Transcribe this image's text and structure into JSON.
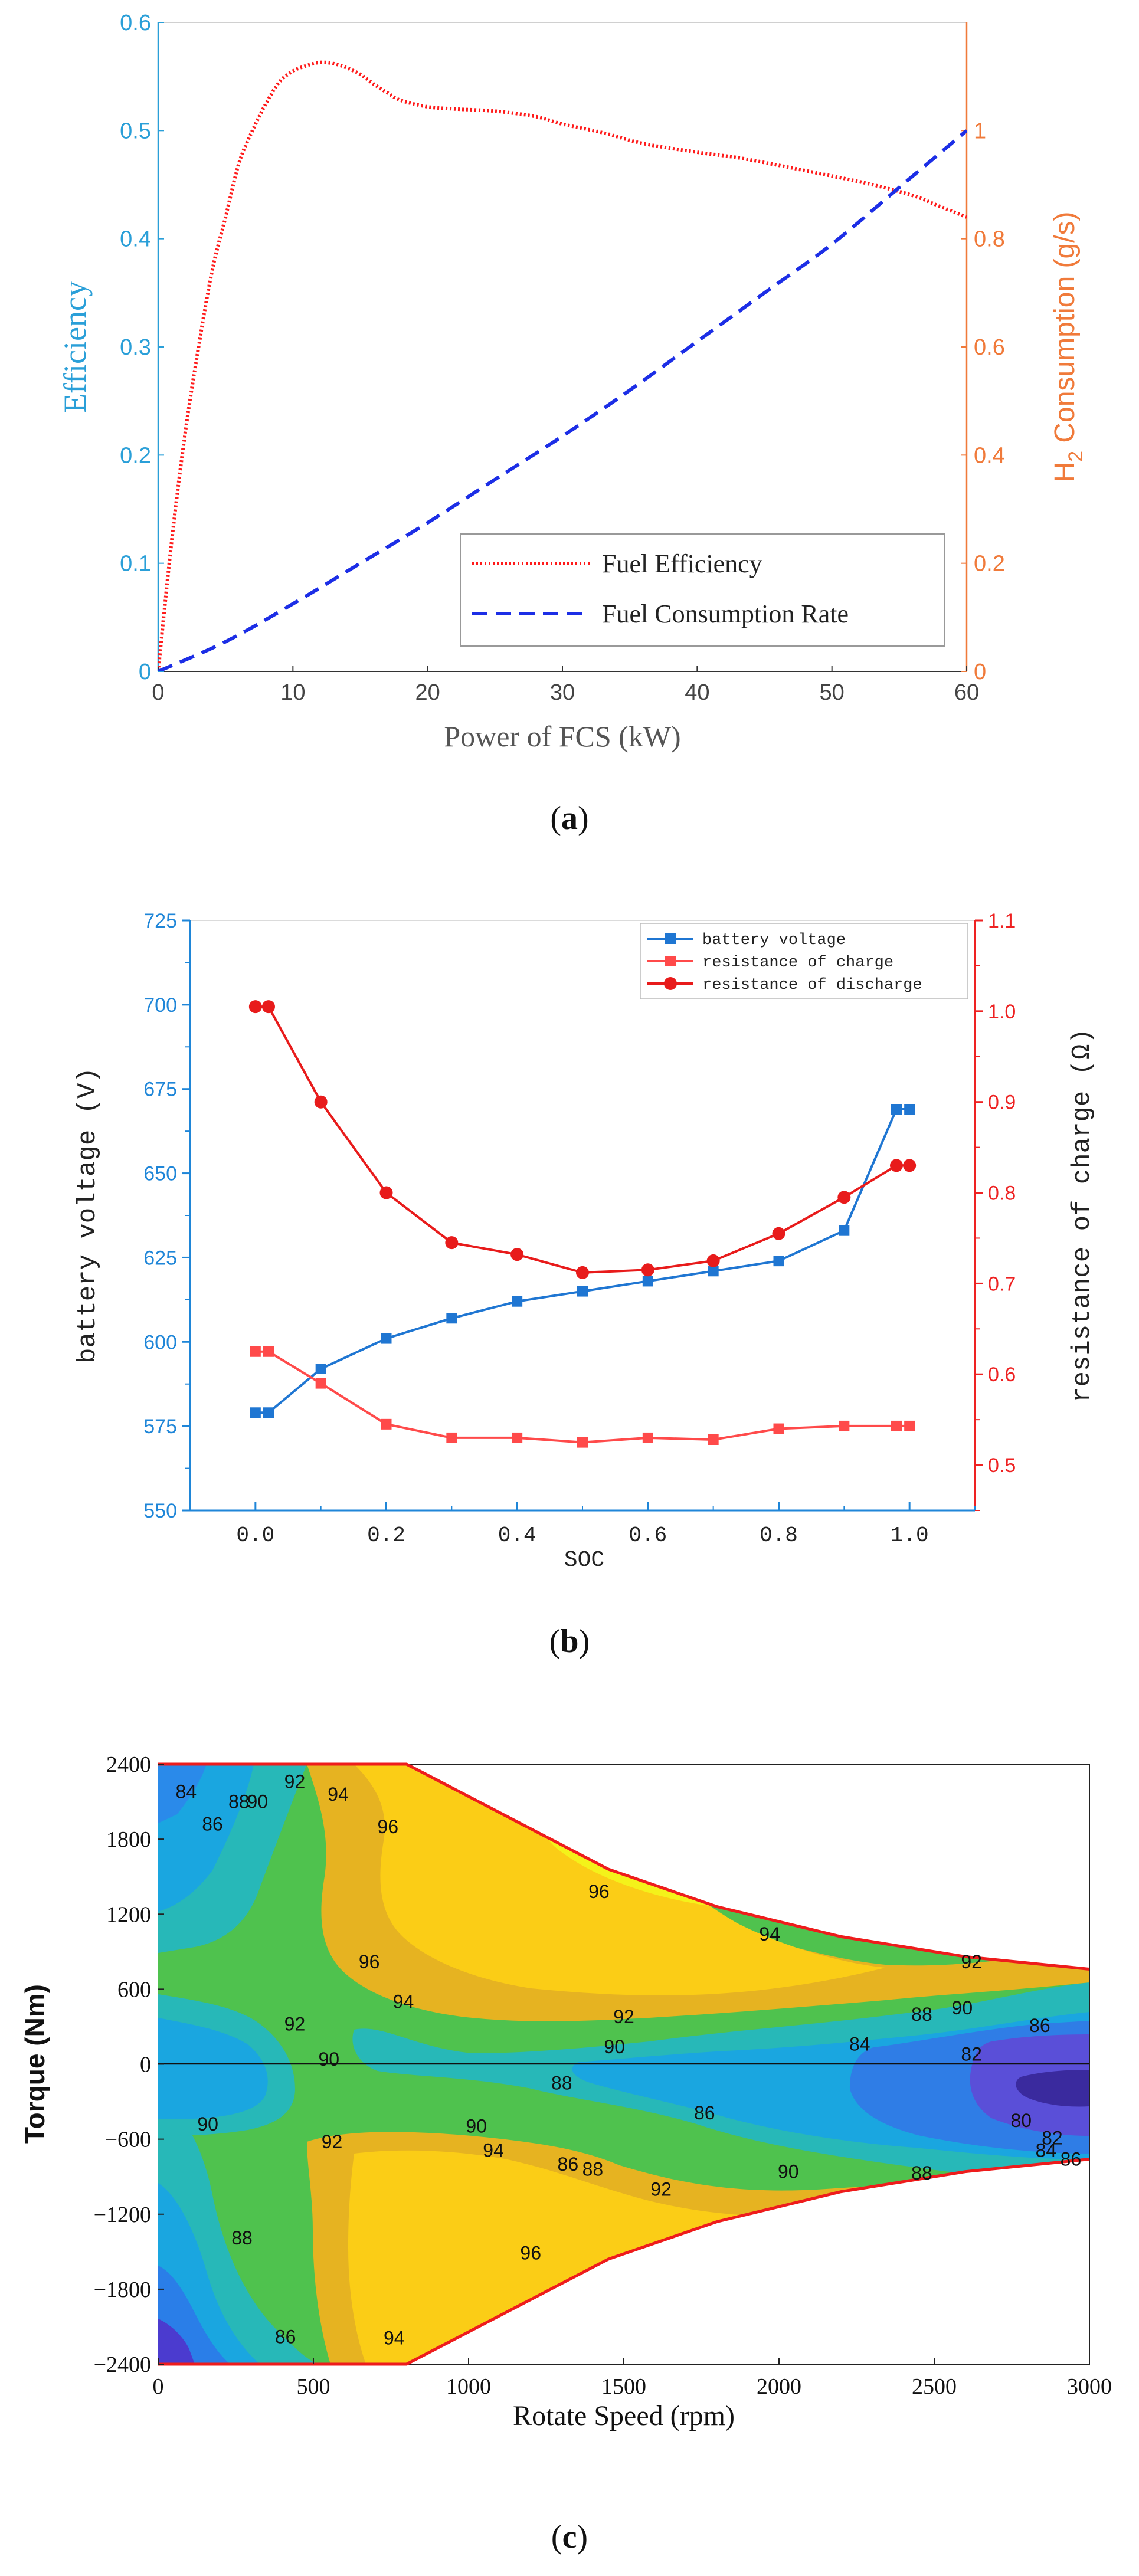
{
  "colors": {
    "blue_axis": "#2a9fd8",
    "orange_axis": "#f07a3a",
    "red_line": "#ff1a1a",
    "blue_dash": "#1c2ee6",
    "b_blue": "#1f76d2",
    "b_red": "#ff4a4a",
    "b_darkred": "#e81b1b",
    "map_border": "#ee1c1c"
  },
  "chart_data": [
    {
      "id": "a",
      "type": "line",
      "caption": "(a)",
      "caption_letter": "a",
      "xlabel": "Power of FCS (kW)",
      "ylabel_left": "Efficiency",
      "ylabel_right_pre": "H",
      "ylabel_right_sub": "2",
      "ylabel_right_post": " Consumption (g/s)",
      "xlim": [
        0,
        60
      ],
      "ylim_left": [
        0,
        0.6
      ],
      "ylim_right": [
        0,
        1.2
      ],
      "x_ticks": [
        0,
        10,
        20,
        30,
        40,
        50,
        60
      ],
      "x_tick_labels": [
        "0",
        "10",
        "20",
        "30",
        "40",
        "50",
        "60"
      ],
      "y_left_ticks": [
        0,
        0.1,
        0.2,
        0.3,
        0.4,
        0.5,
        0.6
      ],
      "y_left_tick_labels": [
        "0",
        "0.1",
        "0.2",
        "0.3",
        "0.4",
        "0.5",
        "0.6"
      ],
      "y_right_ticks": [
        0,
        0.2,
        0.4,
        0.6,
        0.8,
        1.0
      ],
      "y_right_tick_labels": [
        "0",
        "0.2",
        "0.4",
        "0.6",
        "0.8",
        "1"
      ],
      "legend": [
        "Fuel Efficiency",
        "Fuel Consumption Rate"
      ],
      "legend_position": "bottom-right",
      "series": [
        {
          "name": "Fuel Efficiency",
          "axis": "left",
          "style": "dotted",
          "x": [
            0,
            1,
            2,
            3,
            4,
            5,
            6,
            7,
            8,
            9,
            10,
            11,
            12,
            13,
            14,
            15,
            16,
            17,
            18,
            20,
            22,
            25,
            28,
            30,
            33,
            36,
            40,
            43,
            46,
            50,
            53,
            56,
            58,
            60
          ],
          "y": [
            0.0,
            0.12,
            0.22,
            0.3,
            0.37,
            0.42,
            0.47,
            0.5,
            0.525,
            0.545,
            0.555,
            0.56,
            0.563,
            0.562,
            0.558,
            0.552,
            0.543,
            0.535,
            0.528,
            0.522,
            0.52,
            0.518,
            0.513,
            0.506,
            0.498,
            0.488,
            0.48,
            0.475,
            0.468,
            0.458,
            0.45,
            0.44,
            0.43,
            0.42
          ]
        },
        {
          "name": "Fuel Consumption Rate",
          "axis": "right",
          "style": "dashed",
          "x": [
            0,
            5,
            10,
            15,
            20,
            25,
            30,
            35,
            40,
            45,
            50,
            55,
            60
          ],
          "y": [
            0.0,
            0.055,
            0.125,
            0.2,
            0.275,
            0.355,
            0.435,
            0.52,
            0.61,
            0.7,
            0.79,
            0.895,
            1.0
          ]
        }
      ]
    },
    {
      "id": "b",
      "type": "line",
      "caption": "(b)",
      "caption_letter": "b",
      "xlabel": "SOC",
      "ylabel_left": "battery voltage (V)",
      "ylabel_right": "resistance of charge (Ω)",
      "xlim": [
        -0.1,
        1.1
      ],
      "ylim_left": [
        550,
        725
      ],
      "ylim_right": [
        0.45,
        1.1
      ],
      "x_ticks": [
        0,
        0.2,
        0.4,
        0.6,
        0.8,
        1.0
      ],
      "x_tick_labels": [
        "0.0",
        "0.2",
        "0.4",
        "0.6",
        "0.8",
        "1.0"
      ],
      "y_left_ticks": [
        550,
        575,
        600,
        625,
        650,
        675,
        700,
        725
      ],
      "y_left_tick_labels": [
        "550",
        "575",
        "600",
        "625",
        "650",
        "675",
        "700",
        "725"
      ],
      "y_right_ticks": [
        0.5,
        0.6,
        0.7,
        0.8,
        0.9,
        1.0,
        1.1
      ],
      "y_right_tick_labels": [
        "0.5",
        "0.6",
        "0.7",
        "0.8",
        "0.9",
        "1.0",
        "1.1"
      ],
      "legend": [
        "battery voltage",
        "resistance of charge",
        "resistance of discharge"
      ],
      "legend_position": "top-right",
      "series": [
        {
          "name": "battery voltage",
          "axis": "left",
          "marker": "square",
          "x": [
            0,
            0.02,
            0.1,
            0.2,
            0.3,
            0.4,
            0.5,
            0.6,
            0.7,
            0.8,
            0.9,
            0.98,
            1.0
          ],
          "y": [
            579,
            579,
            592,
            601,
            607,
            612,
            615,
            618,
            621,
            624,
            633,
            669,
            669
          ]
        },
        {
          "name": "resistance of charge",
          "axis": "right",
          "marker": "square",
          "x": [
            0,
            0.02,
            0.1,
            0.2,
            0.3,
            0.4,
            0.5,
            0.6,
            0.7,
            0.8,
            0.9,
            0.98,
            1.0
          ],
          "y": [
            0.625,
            0.625,
            0.59,
            0.545,
            0.53,
            0.53,
            0.525,
            0.53,
            0.528,
            0.54,
            0.543,
            0.543,
            0.543
          ]
        },
        {
          "name": "resistance of discharge",
          "axis": "right",
          "marker": "circle",
          "x": [
            0,
            0.02,
            0.1,
            0.2,
            0.3,
            0.4,
            0.5,
            0.6,
            0.7,
            0.8,
            0.9,
            0.98,
            1.0
          ],
          "y": [
            1.005,
            1.005,
            0.9,
            0.8,
            0.745,
            0.732,
            0.712,
            0.715,
            0.725,
            0.755,
            0.795,
            0.83,
            0.83
          ]
        }
      ]
    },
    {
      "id": "c",
      "type": "contour",
      "caption": "(c)",
      "caption_letter": "c",
      "xlabel": "Rotate Speed (rpm)",
      "ylabel": "Torque (Nm)",
      "xlim": [
        0,
        3000
      ],
      "ylim": [
        -2400,
        2400
      ],
      "x_ticks": [
        0,
        500,
        1000,
        1500,
        2000,
        2500,
        3000
      ],
      "x_tick_labels": [
        "0",
        "500",
        "1000",
        "1500",
        "2000",
        "2500",
        "3000"
      ],
      "y_ticks": [
        2400,
        1800,
        1200,
        600,
        0,
        -600,
        -1200,
        -1800,
        -2400
      ],
      "y_tick_labels": [
        "2400",
        "1800",
        "1200",
        "600",
        "0",
        "−600",
        "−1200",
        "−1800",
        "−2400"
      ],
      "boundary_top": [
        [
          0,
          2400
        ],
        [
          800,
          2400
        ],
        [
          1450,
          1560
        ],
        [
          1800,
          1260
        ],
        [
          2200,
          1020
        ],
        [
          2600,
          860
        ],
        [
          3000,
          760
        ]
      ],
      "boundary_bottom": [
        [
          0,
          -2400
        ],
        [
          800,
          -2400
        ],
        [
          1450,
          -1560
        ],
        [
          1800,
          -1260
        ],
        [
          2200,
          -1020
        ],
        [
          2600,
          -860
        ],
        [
          3000,
          -760
        ]
      ],
      "contour_levels": [
        80,
        82,
        84,
        86,
        88,
        90,
        92,
        94,
        96
      ],
      "contour_labels": [
        {
          "text": "84",
          "x": 90,
          "y": 2180
        },
        {
          "text": "86",
          "x": 175,
          "y": 1920
        },
        {
          "text": "88",
          "x": 260,
          "y": 2100
        },
        {
          "text": "90",
          "x": 320,
          "y": 2100
        },
        {
          "text": "92",
          "x": 440,
          "y": 2260
        },
        {
          "text": "94",
          "x": 580,
          "y": 2160
        },
        {
          "text": "96",
          "x": 740,
          "y": 1900
        },
        {
          "text": "96",
          "x": 1420,
          "y": 1380
        },
        {
          "text": "96",
          "x": 680,
          "y": 820
        },
        {
          "text": "94",
          "x": 1970,
          "y": 1040
        },
        {
          "text": "92",
          "x": 2620,
          "y": 820
        },
        {
          "text": "94",
          "x": 790,
          "y": 500
        },
        {
          "text": "92",
          "x": 440,
          "y": 320
        },
        {
          "text": "92",
          "x": 1500,
          "y": 380
        },
        {
          "text": "90",
          "x": 1470,
          "y": 140
        },
        {
          "text": "88",
          "x": 2460,
          "y": 400
        },
        {
          "text": "90",
          "x": 2590,
          "y": 450
        },
        {
          "text": "86",
          "x": 2840,
          "y": 310
        },
        {
          "text": "84",
          "x": 2260,
          "y": 160
        },
        {
          "text": "82",
          "x": 2620,
          "y": 80
        },
        {
          "text": "90",
          "x": 550,
          "y": 40
        },
        {
          "text": "88",
          "x": 1300,
          "y": -150
        },
        {
          "text": "86",
          "x": 1760,
          "y": -390
        },
        {
          "text": "90",
          "x": 1025,
          "y": -495
        },
        {
          "text": "94",
          "x": 1080,
          "y": -690
        },
        {
          "text": "86",
          "x": 1320,
          "y": -800
        },
        {
          "text": "88",
          "x": 1400,
          "y": -840
        },
        {
          "text": "92",
          "x": 1620,
          "y": -1000
        },
        {
          "text": "90",
          "x": 2030,
          "y": -860
        },
        {
          "text": "88",
          "x": 2460,
          "y": -870
        },
        {
          "text": "80",
          "x": 2780,
          "y": -450
        },
        {
          "text": "82",
          "x": 2880,
          "y": -590
        },
        {
          "text": "84",
          "x": 2860,
          "y": -690
        },
        {
          "text": "86",
          "x": 2940,
          "y": -760
        },
        {
          "text": "90",
          "x": 160,
          "y": -480
        },
        {
          "text": "92",
          "x": 560,
          "y": -620
        },
        {
          "text": "88",
          "x": 270,
          "y": -1390
        },
        {
          "text": "96",
          "x": 1200,
          "y": -1510
        },
        {
          "text": "86",
          "x": 410,
          "y": -2180
        },
        {
          "text": "94",
          "x": 760,
          "y": -2190
        }
      ]
    }
  ]
}
